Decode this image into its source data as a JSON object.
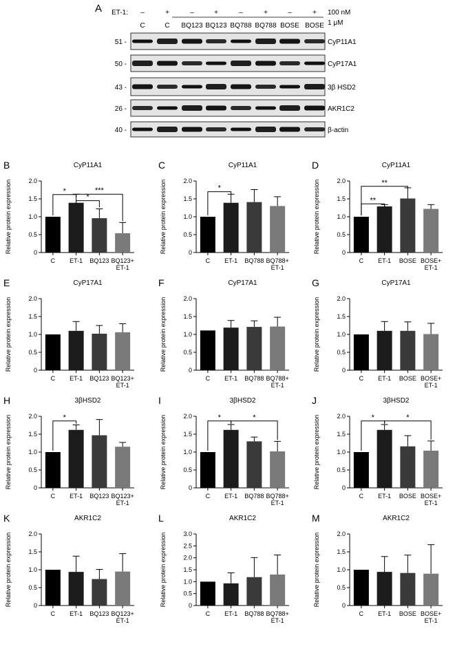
{
  "blot": {
    "letter": "A",
    "treatment_label": "ET-1:",
    "treatment_signs": [
      "–",
      "+",
      "–",
      "+",
      "–",
      "+",
      "–",
      "+"
    ],
    "conc_top": "100 nM",
    "conc_bottom": "1 μM",
    "lanes": [
      "C",
      "C",
      "BQ123",
      "BQ123",
      "BQ788",
      "BQ788",
      "BOSE",
      "BOSE"
    ],
    "rows": [
      {
        "kda": "51 -",
        "protein": "CyP11A1"
      },
      {
        "kda": "50 -",
        "protein": "CyP17A1"
      },
      {
        "kda": "43 -",
        "protein": "3β HSD2"
      },
      {
        "kda": "26 -",
        "protein": "AKR1C2"
      },
      {
        "kda": "40 -",
        "protein": "β-actin"
      }
    ]
  },
  "chart_data": [
    {
      "letter": "B",
      "type": "bar",
      "title": "CyP11A1",
      "ylabel": "Relative protein expression",
      "ylim": [
        0,
        2.0
      ],
      "yticks": [
        "0",
        "0.5",
        "1.0",
        "1.5",
        "2.0"
      ],
      "categories": [
        [
          "C"
        ],
        [
          "ET-1"
        ],
        [
          "BQ123"
        ],
        [
          "BQ123+",
          "ET-1"
        ]
      ],
      "values": [
        1.0,
        1.39,
        0.96,
        0.54
      ],
      "errors": [
        0,
        0.24,
        0.26,
        0.3
      ],
      "sig": [
        {
          "from": 0,
          "to": 1,
          "label": "*",
          "y": 1.62
        },
        {
          "from": 1,
          "to": 2,
          "label": "*",
          "y": 1.45
        },
        {
          "from": 1,
          "to": 3,
          "label": "***",
          "y": 1.63
        }
      ]
    },
    {
      "letter": "C",
      "type": "bar",
      "title": "CyP11A1",
      "ylabel": "Relative protein expression",
      "ylim": [
        0,
        2.0
      ],
      "yticks": [
        "0",
        "0.5",
        "1.0",
        "1.5",
        "2.0"
      ],
      "categories": [
        [
          "C"
        ],
        [
          "ET-1"
        ],
        [
          "BQ788"
        ],
        [
          "BQ788+",
          "ET-1"
        ]
      ],
      "values": [
        1.0,
        1.39,
        1.41,
        1.3
      ],
      "errors": [
        0,
        0.24,
        0.35,
        0.26
      ],
      "sig": [
        {
          "from": 0,
          "to": 1,
          "label": "*",
          "y": 1.7
        }
      ]
    },
    {
      "letter": "D",
      "type": "bar",
      "title": "CyP11A1",
      "ylabel": "Relative protein expression",
      "ylim": [
        0,
        2.0
      ],
      "yticks": [
        "0",
        "0.5",
        "1.0",
        "1.5",
        "2.0"
      ],
      "categories": [
        [
          "C"
        ],
        [
          "ET-1"
        ],
        [
          "BOSE"
        ],
        [
          "BOSE+",
          "ET-1"
        ]
      ],
      "values": [
        1.0,
        1.29,
        1.51,
        1.22
      ],
      "errors": [
        0,
        0.05,
        0.3,
        0.12
      ],
      "sig": [
        {
          "from": 0,
          "to": 1,
          "label": "**",
          "y": 1.36
        },
        {
          "from": 0,
          "to": 2,
          "label": "**",
          "y": 1.85
        }
      ]
    },
    {
      "letter": "E",
      "type": "bar",
      "title": "CyP17A1",
      "ylabel": "Relative protein expression",
      "ylim": [
        0,
        2.0
      ],
      "yticks": [
        "0",
        "0.5",
        "1.0",
        "1.5",
        "2.0"
      ],
      "categories": [
        [
          "C"
        ],
        [
          "ET-1"
        ],
        [
          "BQ123"
        ],
        [
          "BQ123+",
          "ET-1"
        ]
      ],
      "values": [
        1.0,
        1.1,
        1.02,
        1.06
      ],
      "errors": [
        0,
        0.26,
        0.23,
        0.24
      ],
      "sig": []
    },
    {
      "letter": "F",
      "type": "bar",
      "title": "CyP17A1",
      "ylabel": "Relative protein expression",
      "ylim": [
        0,
        2.0
      ],
      "yticks": [
        "0",
        "0.5",
        "1.0",
        "1.5",
        "2.0"
      ],
      "categories": [
        [
          "C"
        ],
        [
          "ET-1"
        ],
        [
          "BQ788"
        ],
        [
          "BQ788+",
          "ET-1"
        ]
      ],
      "values": [
        1.11,
        1.19,
        1.21,
        1.22
      ],
      "errors": [
        0,
        0.2,
        0.17,
        0.26
      ],
      "sig": []
    },
    {
      "letter": "G",
      "type": "bar",
      "title": "CyP17A1",
      "ylabel": "Relative protein expression",
      "ylim": [
        0,
        2.0
      ],
      "yticks": [
        "0",
        "0.5",
        "1.0",
        "1.5",
        "2.0"
      ],
      "categories": [
        [
          "C"
        ],
        [
          "ET-1"
        ],
        [
          "BOSE"
        ],
        [
          "BOSE+",
          "ET-1"
        ]
      ],
      "values": [
        1.0,
        1.1,
        1.1,
        1.01
      ],
      "errors": [
        0,
        0.26,
        0.25,
        0.3
      ],
      "sig": []
    },
    {
      "letter": "H",
      "type": "bar",
      "title": "3βHSD2",
      "ylabel": "Relative protein expression",
      "ylim": [
        0,
        2.0
      ],
      "yticks": [
        "0",
        "0.5",
        "1.0",
        "1.5",
        "2.0"
      ],
      "categories": [
        [
          "C"
        ],
        [
          "ET-1"
        ],
        [
          "BQ123"
        ],
        [
          "BQ123+",
          "ET-1"
        ]
      ],
      "values": [
        1.0,
        1.62,
        1.47,
        1.15
      ],
      "errors": [
        0,
        0.14,
        0.44,
        0.12
      ],
      "sig": [
        {
          "from": 0,
          "to": 1,
          "label": "*",
          "y": 1.87
        }
      ]
    },
    {
      "letter": "I",
      "type": "bar",
      "title": "3βHSD2",
      "ylabel": "Relative protein expression",
      "ylim": [
        0,
        2.0
      ],
      "yticks": [
        "0",
        "0.5",
        "1.0",
        "1.5",
        "2.0"
      ],
      "categories": [
        [
          "C"
        ],
        [
          "ET-1"
        ],
        [
          "BQ788"
        ],
        [
          "BQ788+",
          "ET-1"
        ]
      ],
      "values": [
        1.0,
        1.62,
        1.3,
        1.02
      ],
      "errors": [
        0,
        0.15,
        0.12,
        0.28
      ],
      "sig": [
        {
          "from": 0,
          "to": 1,
          "label": "*",
          "y": 1.87
        },
        {
          "from": 1,
          "to": 3,
          "label": "*",
          "y": 1.87
        }
      ]
    },
    {
      "letter": "J",
      "type": "bar",
      "title": "3βHSD2",
      "ylabel": "Relative protein expression",
      "ylim": [
        0,
        2.0
      ],
      "yticks": [
        "0",
        "0.5",
        "1.0",
        "1.5",
        "2.0"
      ],
      "categories": [
        [
          "C"
        ],
        [
          "ET-1"
        ],
        [
          "BOSE"
        ],
        [
          "BOSE+",
          "ET-1"
        ]
      ],
      "values": [
        1.0,
        1.62,
        1.16,
        1.04
      ],
      "errors": [
        0,
        0.15,
        0.3,
        0.27
      ],
      "sig": [
        {
          "from": 0,
          "to": 1,
          "label": "*",
          "y": 1.87
        },
        {
          "from": 1,
          "to": 3,
          "label": "*",
          "y": 1.87
        }
      ]
    },
    {
      "letter": "K",
      "type": "bar",
      "title": "AKR1C2",
      "ylabel": "Relative protein expression",
      "ylim": [
        0,
        2.0
      ],
      "yticks": [
        "0",
        "0.5",
        "1.0",
        "1.5",
        "2.0"
      ],
      "categories": [
        [
          "C"
        ],
        [
          "ET-1"
        ],
        [
          "BQ123"
        ],
        [
          "BQ123+",
          "ET-1"
        ]
      ],
      "values": [
        1.0,
        0.94,
        0.74,
        0.95
      ],
      "errors": [
        0,
        0.44,
        0.27,
        0.5
      ],
      "sig": []
    },
    {
      "letter": "L",
      "type": "bar",
      "title": "AKR1C2",
      "ylabel": "Relative protein expression",
      "ylim": [
        0,
        3.0
      ],
      "yticks": [
        "0",
        "0.5",
        "1.0",
        "1.5",
        "2.0",
        "2.5",
        "3.0"
      ],
      "categories": [
        [
          "C"
        ],
        [
          "ET-1"
        ],
        [
          "BQ788"
        ],
        [
          "BQ788+",
          "ET-1"
        ]
      ],
      "values": [
        1.0,
        0.93,
        1.19,
        1.3
      ],
      "errors": [
        0,
        0.44,
        0.82,
        0.82
      ],
      "sig": []
    },
    {
      "letter": "M",
      "type": "bar",
      "title": "AKR1C2",
      "ylabel": "Relative protein expression",
      "ylim": [
        0,
        2.0
      ],
      "yticks": [
        "0",
        "0.5",
        "1.0",
        "1.5",
        "2.0"
      ],
      "categories": [
        [
          "C"
        ],
        [
          "ET-1"
        ],
        [
          "BOSE"
        ],
        [
          "BOSE+",
          "ET-1"
        ]
      ],
      "values": [
        1.0,
        0.94,
        0.91,
        0.89
      ],
      "errors": [
        0,
        0.43,
        0.5,
        0.81
      ],
      "sig": []
    }
  ],
  "colors": {
    "bar_fills": [
      "#000000",
      "#1c1c1c",
      "#3a3a3a",
      "#7a7a7a"
    ],
    "axis": "#000000",
    "band": "#111111"
  }
}
